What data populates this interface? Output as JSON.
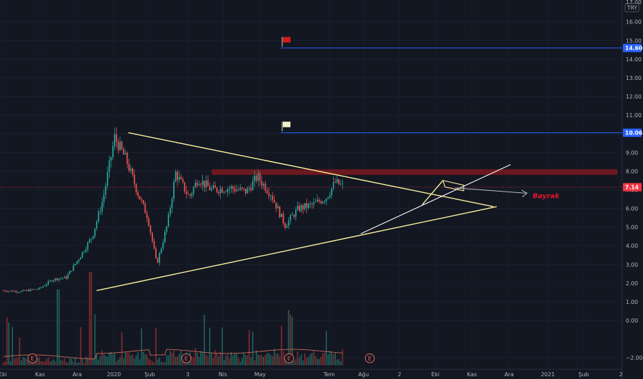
{
  "chart_data": {
    "type": "candlestick",
    "currency": "TRY",
    "y_axis_ticks": [
      "−2.00",
      "0.00",
      "1.00",
      "2.00",
      "3.00",
      "4.00",
      "5.00",
      "6.00",
      "7.00",
      "8.00",
      "9.00",
      "10.00",
      "11.00",
      "12.00",
      "13.00",
      "14.00",
      "15.00",
      "16.00"
    ],
    "y_axis_top_partial": "17.00",
    "x_axis_labels": [
      "Eki",
      "Kas",
      "Ara",
      "2020",
      "Şub",
      "3",
      "Nis",
      "May",
      "Tem",
      "Ağu",
      "2",
      "Eki",
      "Kas",
      "Ara",
      "2021",
      "Şub",
      "2"
    ],
    "price_badges": [
      {
        "value": "14.60",
        "color": "#2962ff"
      },
      {
        "value": "10.06",
        "color": "#2962ff"
      },
      {
        "value": "7.14",
        "color": "#f23645"
      }
    ],
    "horizontal_levels": [
      {
        "price": 14.6,
        "color": "#2962ff",
        "flag": "red-flag-icon"
      },
      {
        "price": 10.06,
        "color": "#2962ff",
        "flag": "yellow-flag-icon"
      }
    ],
    "current_price": 7.14,
    "resistance_zone": [
      7.8,
      8.1
    ],
    "annotation": "Bayrak",
    "earnings_markers": [
      "E",
      "E",
      "E",
      "E"
    ],
    "price_path": [
      {
        "x": "2019-10-01",
        "close": 1.6
      },
      {
        "x": "2019-10-20",
        "close": 1.55
      },
      {
        "x": "2019-11-10",
        "close": 1.7
      },
      {
        "x": "2019-11-25",
        "close": 2.2
      },
      {
        "x": "2019-12-10",
        "close": 2.3
      },
      {
        "x": "2019-12-25",
        "close": 3.4
      },
      {
        "x": "2020-01-08",
        "close": 4.5
      },
      {
        "x": "2020-01-20",
        "close": 6.5
      },
      {
        "x": "2020-02-02",
        "close": 9.8
      },
      {
        "x": "2020-02-15",
        "close": 8.6
      },
      {
        "x": "2020-02-28",
        "close": 6.8
      },
      {
        "x": "2020-03-10",
        "close": 5.5
      },
      {
        "x": "2020-03-20",
        "close": 3.0
      },
      {
        "x": "2020-04-01",
        "close": 5.2
      },
      {
        "x": "2020-04-10",
        "close": 7.9
      },
      {
        "x": "2020-04-25",
        "close": 6.6
      },
      {
        "x": "2020-05-05",
        "close": 7.6
      },
      {
        "x": "2020-05-20",
        "close": 7.0
      },
      {
        "x": "2020-06-10",
        "close": 7.1
      },
      {
        "x": "2020-06-28",
        "close": 6.9
      },
      {
        "x": "2020-07-10",
        "close": 7.7
      },
      {
        "x": "2020-07-25",
        "close": 6.8
      },
      {
        "x": "2020-08-10",
        "close": 5.1
      },
      {
        "x": "2020-08-25",
        "close": 6.0
      },
      {
        "x": "2020-09-10",
        "close": 6.2
      },
      {
        "x": "2020-09-25",
        "close": 6.6
      },
      {
        "x": "2020-10-05",
        "close": 7.4
      },
      {
        "x": "2020-10-15",
        "close": 7.14
      }
    ]
  }
}
